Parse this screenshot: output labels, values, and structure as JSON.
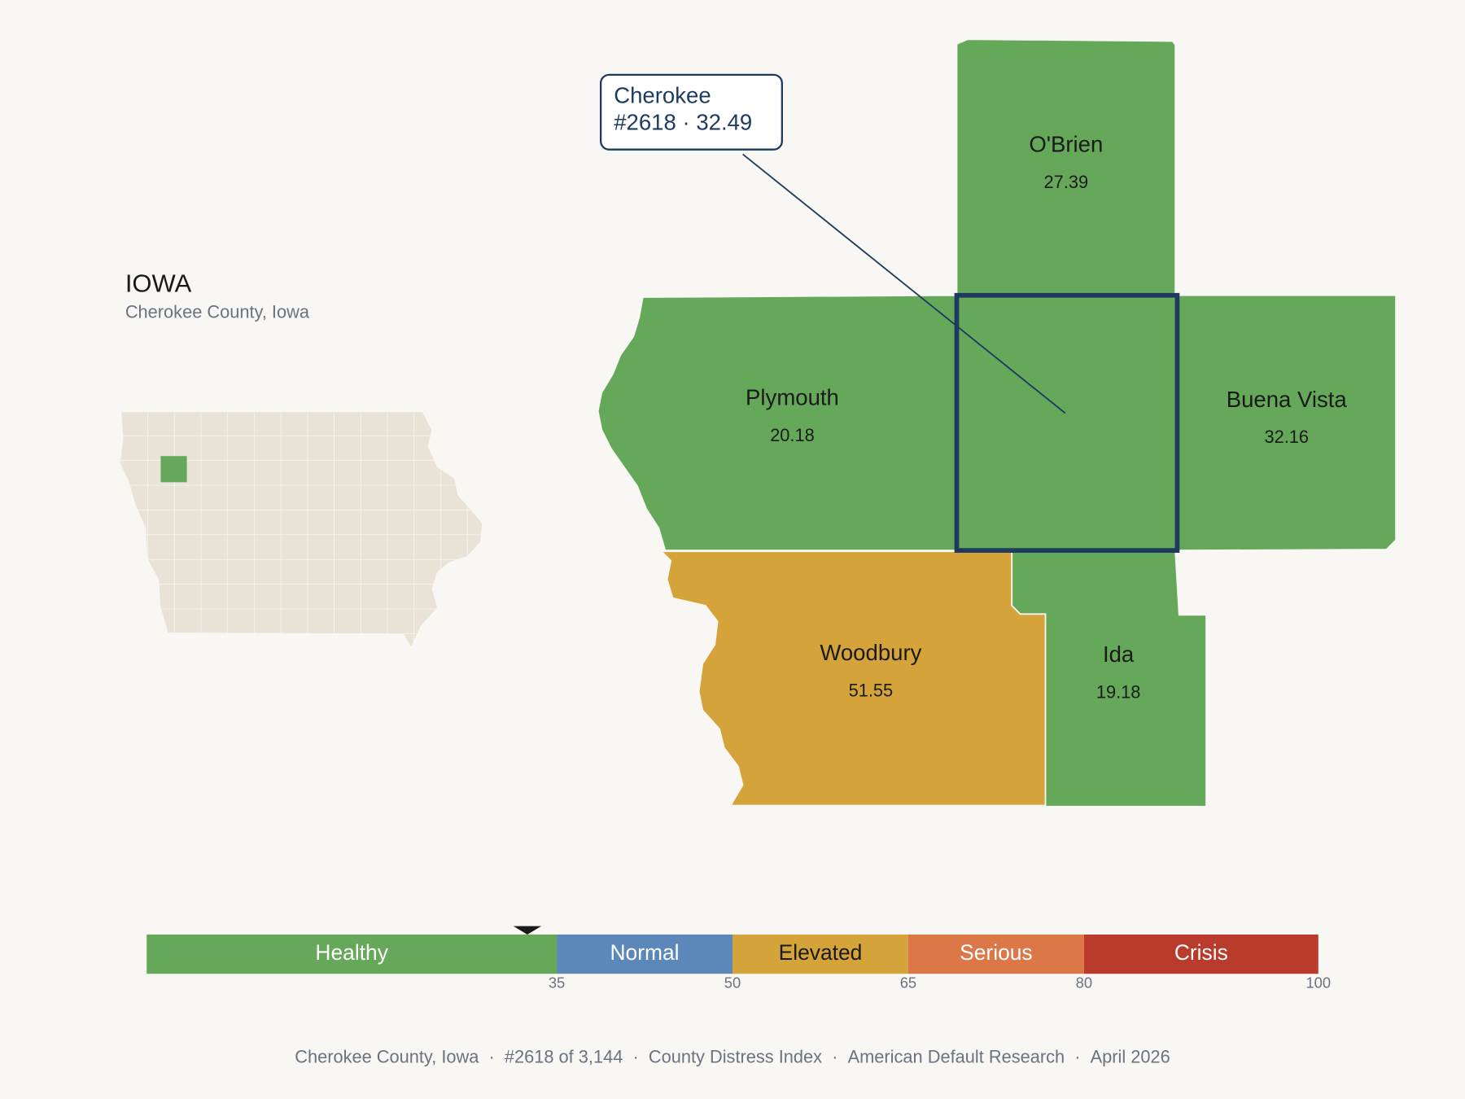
{
  "state": {
    "title": "IOWA",
    "subtitle": "Cherokee County, Iowa"
  },
  "callout": {
    "name": "Cherokee",
    "rank": "#2618",
    "separator": "·",
    "score": 32.49
  },
  "counties": [
    {
      "name": "O'Brien",
      "score": 27.39
    },
    {
      "name": "Plymouth",
      "score": 20.18
    },
    {
      "name": "Buena Vista",
      "score": 32.16
    },
    {
      "name": "Woodbury",
      "score": 51.55
    },
    {
      "name": "Ida",
      "score": 19.18
    }
  ],
  "scale": {
    "xlim": [
      0,
      100
    ],
    "xticks": [
      35,
      50,
      65,
      80,
      100
    ],
    "bands": [
      {
        "label": "Healthy",
        "color": "#66a85a",
        "text_color": "#ffffff"
      },
      {
        "label": "Normal",
        "color": "#5b88b8",
        "text_color": "#ffffff"
      },
      {
        "label": "Elevated",
        "color": "#d4a43a",
        "text_color": "#1a1a1a"
      },
      {
        "label": "Serious",
        "color": "#dc7748",
        "text_color": "#ffffff"
      },
      {
        "label": "Crisis",
        "color": "#b83b2b",
        "text_color": "#ffffff"
      }
    ]
  },
  "footer": {
    "items": [
      "Cherokee County, Iowa",
      "#2618 of 3,144",
      "County Distress Index",
      "American Default Research",
      "April 2026"
    ],
    "separator": "·"
  }
}
